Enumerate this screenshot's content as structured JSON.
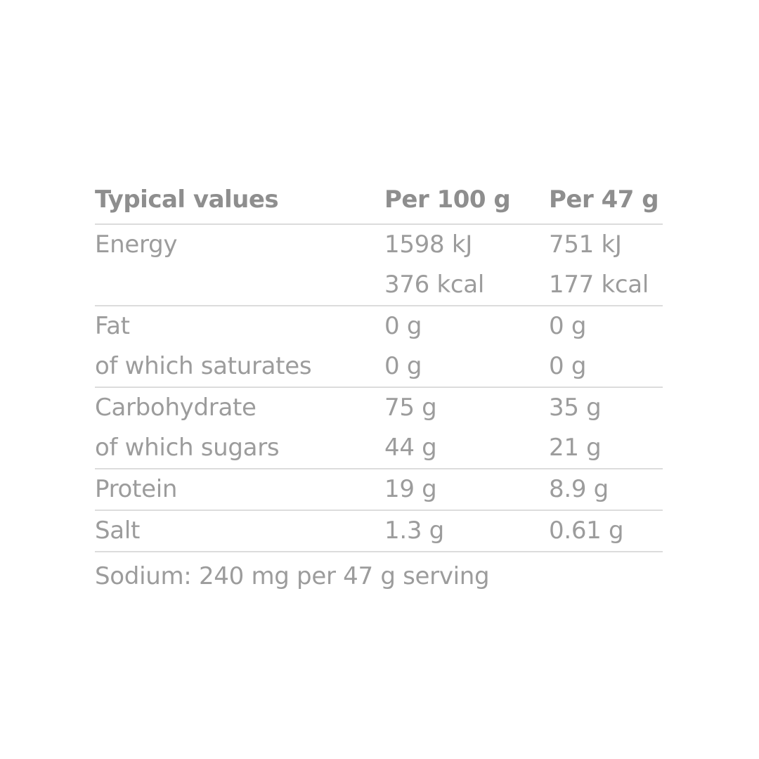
{
  "table": {
    "header": [
      "Typical values",
      "Per 100 g",
      "Per 47 g"
    ],
    "groups": [
      [
        [
          "Energy"
        ],
        [
          "1598 kJ",
          "376 kcal"
        ],
        [
          "751 kJ",
          "177 kcal"
        ]
      ],
      [
        [
          "Fat",
          "of which saturates"
        ],
        [
          "0 g",
          "0 g"
        ],
        [
          "0 g",
          "0 g"
        ]
      ],
      [
        [
          "Carbohydrate",
          "of which sugars"
        ],
        [
          "75 g",
          "44 g"
        ],
        [
          "35 g",
          "21 g"
        ]
      ],
      [
        [
          "Protein"
        ],
        [
          "19 g"
        ],
        [
          "8.9 g"
        ]
      ],
      [
        [
          "Salt"
        ],
        [
          "1.3 g"
        ],
        [
          "0.61 g"
        ]
      ]
    ],
    "footnote": "Sodium: 240 mg per 47 g serving"
  }
}
